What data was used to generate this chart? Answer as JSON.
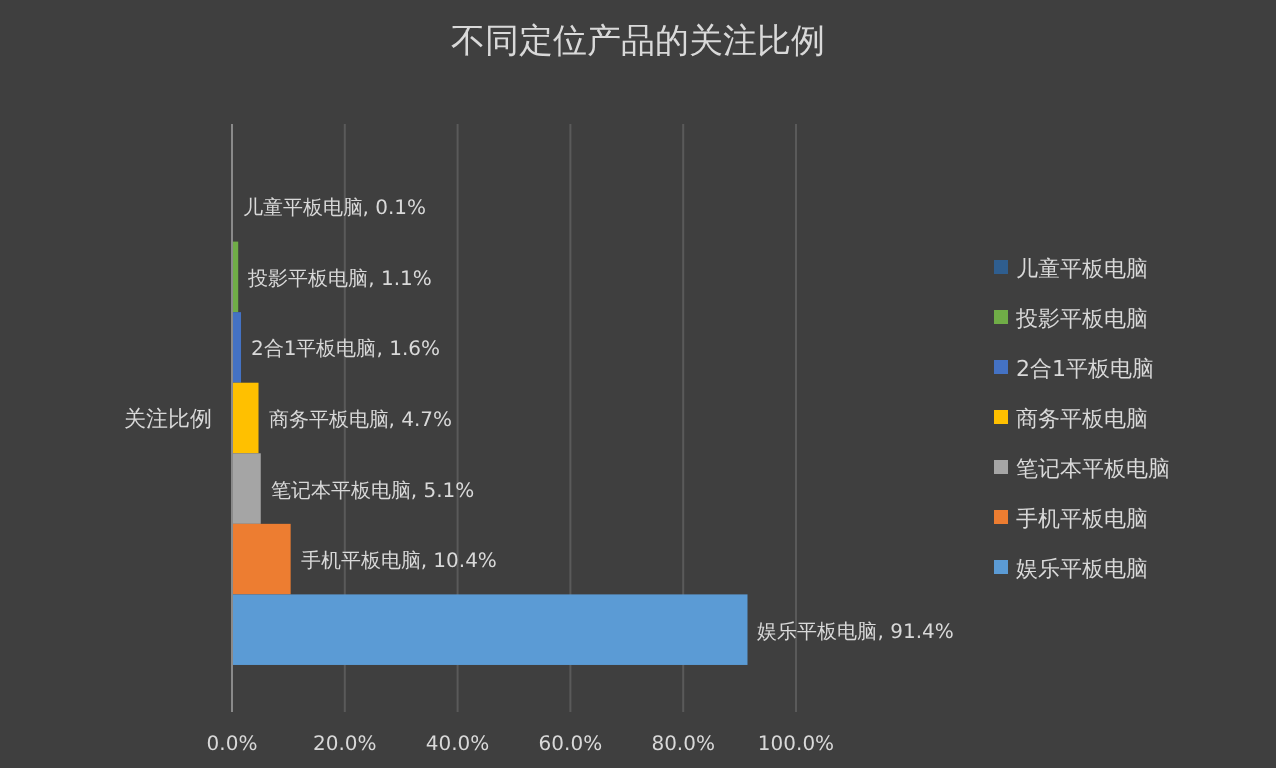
{
  "chart_data": {
    "type": "bar",
    "orientation": "horizontal",
    "title": "不同定位产品的关注比例",
    "categories": [
      "关注比例"
    ],
    "series": [
      {
        "name": "儿童平板电脑",
        "color": "#2f5e8f",
        "values": [
          0.1
        ],
        "value_labels": [
          "儿童平板电脑, 0.1%"
        ]
      },
      {
        "name": "投影平板电脑",
        "color": "#70ad47",
        "values": [
          1.1
        ],
        "value_labels": [
          "投影平板电脑, 1.1%"
        ]
      },
      {
        "name": "2合1平板电脑",
        "color": "#4472c4",
        "values": [
          1.6
        ],
        "value_labels": [
          "2合1平板电脑, 1.6%"
        ]
      },
      {
        "name": "商务平板电脑",
        "color": "#ffc000",
        "values": [
          4.7
        ],
        "value_labels": [
          "商务平板电脑, 4.7%"
        ]
      },
      {
        "name": "笔记本平板电脑",
        "color": "#a5a5a5",
        "values": [
          5.1
        ],
        "value_labels": [
          "笔记本平板电脑, 5.1%"
        ]
      },
      {
        "name": "手机平板电脑",
        "color": "#ed7d31",
        "values": [
          10.4
        ],
        "value_labels": [
          "手机平板电脑, 10.4%"
        ]
      },
      {
        "name": "娱乐平板电脑",
        "color": "#5b9bd5",
        "values": [
          91.4
        ],
        "value_labels": [
          "娱乐平板电脑, 91.4%"
        ]
      }
    ],
    "xlim": [
      0,
      100
    ],
    "xticks": [
      {
        "value": 0,
        "label": "0.0%"
      },
      {
        "value": 20,
        "label": "20.0%"
      },
      {
        "value": 40,
        "label": "40.0%"
      },
      {
        "value": 60,
        "label": "60.0%"
      },
      {
        "value": 80,
        "label": "80.0%"
      },
      {
        "value": 100,
        "label": "100.0%"
      }
    ],
    "grid": "x",
    "legend": "right"
  }
}
